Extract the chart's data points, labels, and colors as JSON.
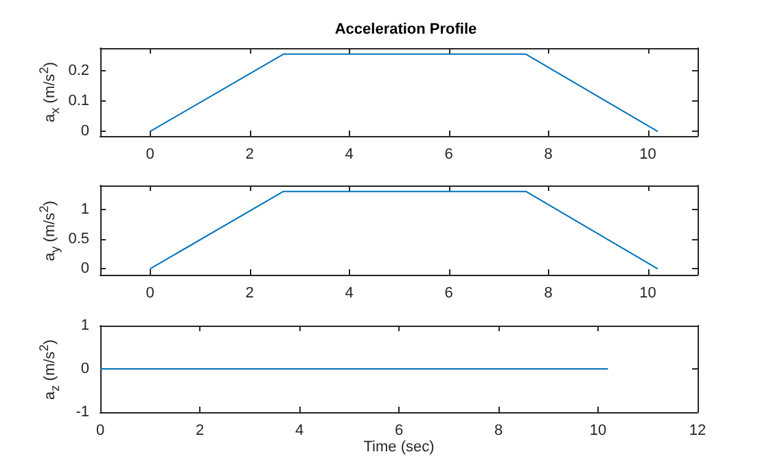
{
  "chart_data": [
    {
      "type": "line",
      "title": "Acceleration Profile",
      "ylabel": "a$_{x}$ (m/s$^{2}$)",
      "xlim": [
        -1,
        11
      ],
      "xticks": [
        0,
        2,
        4,
        6,
        8,
        10
      ],
      "ylim": [
        -0.015,
        0.275
      ],
      "yticks": [
        0,
        0.1,
        0.2
      ],
      "grid": false,
      "marker": "none",
      "series": [
        {
          "color": "#0072bd",
          "x": [
            0,
            2.68,
            7.55,
            10.2
          ],
          "values": [
            0,
            0.255,
            0.255,
            0
          ]
        }
      ]
    },
    {
      "type": "line",
      "ylabel": "a$_{y}$ (m/s$^{2}$)",
      "xlim": [
        -1,
        11
      ],
      "xticks": [
        0,
        2,
        4,
        6,
        8,
        10
      ],
      "ylim": [
        -0.1,
        1.4
      ],
      "yticks": [
        0,
        0.5,
        1
      ],
      "grid": false,
      "marker": "none",
      "series": [
        {
          "color": "#0072bd",
          "x": [
            0,
            2.68,
            7.55,
            10.2
          ],
          "values": [
            0,
            1.3,
            1.3,
            0
          ]
        }
      ]
    },
    {
      "type": "line",
      "ylabel": "a$_{z}$ (m/s$^{2}$)",
      "xlabel": "Time (sec)",
      "xlim": [
        0,
        12
      ],
      "xticks": [
        0,
        2,
        4,
        6,
        8,
        10,
        12
      ],
      "ylim": [
        -1,
        1
      ],
      "yticks": [
        -1,
        0,
        1
      ],
      "grid": false,
      "marker": "none",
      "series": [
        {
          "color": "#0072bd",
          "x": [
            0,
            10.2
          ],
          "values": [
            0,
            0
          ]
        }
      ]
    }
  ]
}
